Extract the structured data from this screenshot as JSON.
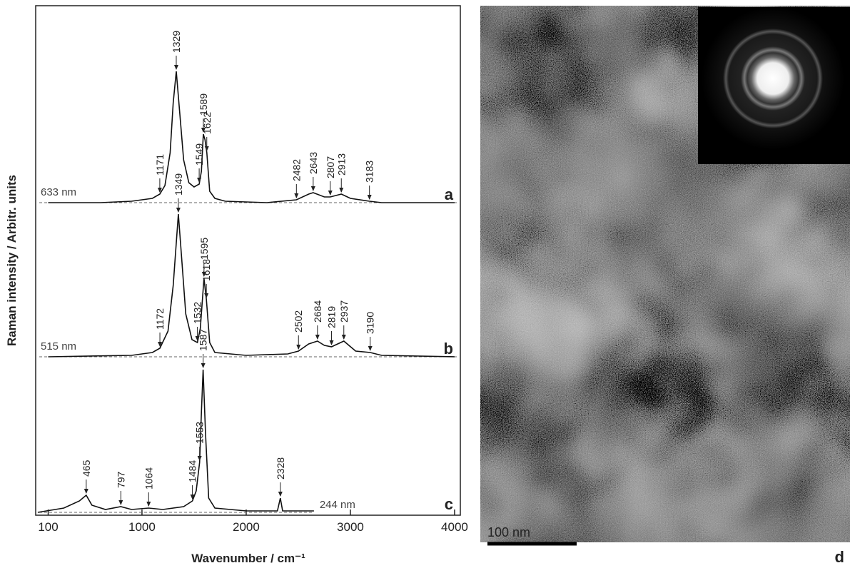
{
  "chart_data": {
    "type": "line",
    "xlabel": "Wavenumber / cm⁻¹",
    "ylabel": "Raman intensity / Arbitr. units",
    "xlim": [
      -20,
      4055
    ],
    "xticks": [
      100,
      1000,
      2000,
      3000,
      4000
    ],
    "ylim": [
      0,
      100
    ],
    "series": [
      {
        "name": "633 nm",
        "panel": "a",
        "color": "#111111",
        "x": [
          100,
          600,
          900,
          1100,
          1171,
          1220,
          1270,
          1300,
          1329,
          1360,
          1400,
          1450,
          1500,
          1549,
          1570,
          1589,
          1605,
          1622,
          1650,
          1700,
          1800,
          2200,
          2482,
          2600,
          2643,
          2750,
          2807,
          2913,
          3000,
          3183,
          3300,
          4000
        ],
        "values": [
          0,
          0,
          1,
          3,
          6,
          12,
          35,
          70,
          92,
          65,
          30,
          14,
          11,
          13,
          22,
          48,
          44,
          35,
          8,
          3,
          1,
          0,
          2,
          6,
          7,
          4,
          4,
          6,
          3,
          1,
          0,
          0
        ],
        "peaks": [
          1171,
          1329,
          1549,
          1589,
          1622,
          2482,
          2643,
          2807,
          2913,
          3183
        ]
      },
      {
        "name": "515 nm",
        "panel": "b",
        "color": "#111111",
        "x": [
          100,
          900,
          1100,
          1172,
          1250,
          1300,
          1349,
          1380,
          1420,
          1480,
          1532,
          1560,
          1595,
          1618,
          1650,
          1700,
          2000,
          2400,
          2502,
          2600,
          2684,
          2750,
          2819,
          2937,
          3050,
          3190,
          3300,
          4000
        ],
        "values": [
          0,
          1,
          3,
          6,
          18,
          50,
          100,
          70,
          30,
          12,
          10,
          20,
          55,
          40,
          10,
          3,
          1,
          2,
          4,
          9,
          11,
          8,
          7,
          11,
          4,
          3,
          1,
          0
        ],
        "peaks": [
          1172,
          1349,
          1532,
          1595,
          1618,
          2502,
          2684,
          2819,
          2937,
          3190
        ]
      },
      {
        "name": "244 nm",
        "panel": "c",
        "color": "#111111",
        "x": [
          0,
          250,
          400,
          465,
          520,
          650,
          797,
          900,
          1064,
          1200,
          1400,
          1484,
          1520,
          1553,
          1570,
          1587,
          1610,
          1640,
          1700,
          2000,
          2300,
          2328,
          2350,
          2650
        ],
        "values": [
          0,
          3,
          8,
          12,
          5,
          2,
          4,
          2,
          3,
          2,
          4,
          8,
          15,
          35,
          70,
          100,
          55,
          10,
          3,
          1,
          1,
          10,
          1,
          1
        ],
        "peaks": [
          465,
          797,
          1064,
          1484,
          1553,
          1587,
          2328
        ]
      }
    ]
  },
  "image": {
    "label": "d",
    "scale_bar": "100 nm"
  }
}
